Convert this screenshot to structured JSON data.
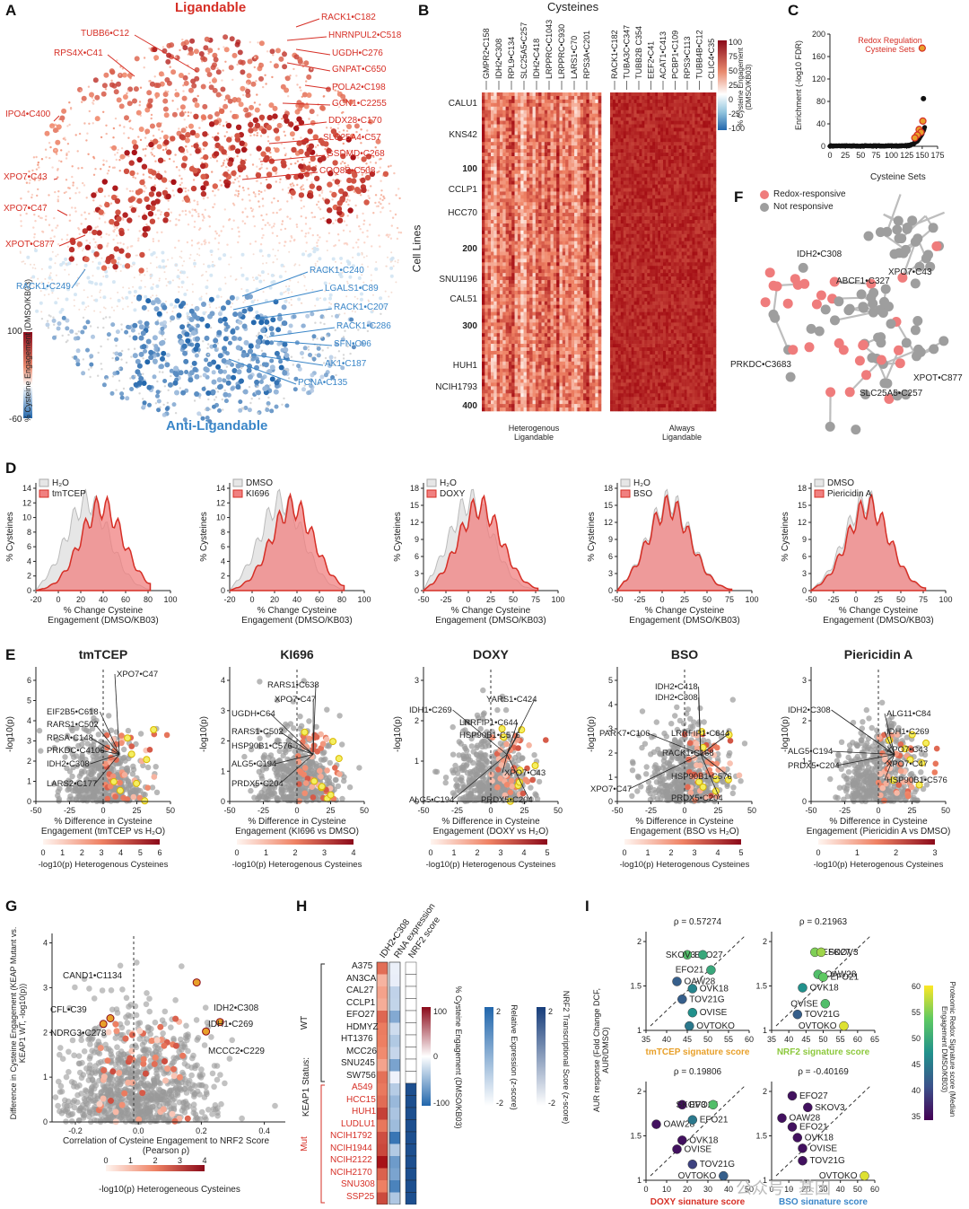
{
  "figure": {
    "labels": [
      "A",
      "B",
      "C",
      "D",
      "E",
      "F",
      "G",
      "H",
      "I"
    ]
  },
  "panelA": {
    "top_title": "Ligandable",
    "bottom_title": "Anti-Ligandable",
    "legend_top": "100",
    "legend_bottom": "-60",
    "legend_label": "% Cysteine Engagement (DMSO/KB03)",
    "red_labels": [
      "RACK1•C182",
      "HNRNPUL2•C518",
      "UGDH•C276",
      "GNPAT•C650",
      "POLA2•C198",
      "GCN1•C2255",
      "DDX28•C170",
      "SLC25A4•C57",
      "GSDMD•C268",
      "COQ8B•C508",
      "TUBB6•C12",
      "RPS4X•C41",
      "IPO4•C400",
      "XPO7•C43",
      "XPO7•C47",
      "XPOT•C877"
    ],
    "blue_labels": [
      "RACK1•C240",
      "LGALS1•C89",
      "RACK1•C207",
      "RACK1•C286",
      "SFN•C96",
      "AK1•C187",
      "PCNA•C135",
      "RACK1•C249"
    ]
  },
  "panelB": {
    "title": "Cysteines",
    "col_labels_left": [
      "GMPR2•C158",
      "IDH2•C308",
      "RPL9•C134",
      "SLC25A5•C257",
      "IDH2•C418",
      "LRPPRC•C1043",
      "LRPPRC•C930",
      "LARS1•C70",
      "RPS3A•C201"
    ],
    "col_labels_right": [
      "RACK1•C182",
      "TUBA3C•C347",
      "TUBB2B C354",
      "EEF2•C41",
      "ACAT1•C413",
      "PCBP1•C109",
      "RPS3•C113",
      "TUBB4B•C12",
      "CLIC4•C35"
    ],
    "row_labels": [
      "CALU1",
      "KNS42",
      "100",
      "CCLP1",
      "HCC70",
      "200",
      "SNU1196",
      "CAL51",
      "300",
      "HUH1",
      "NCIH1793",
      "400"
    ],
    "y_title": "Cell Lines",
    "left_caption": "Heterogenous Ligandable",
    "right_caption": "Always Ligandable",
    "legend_top": "100",
    "legend_mid1": "75",
    "legend_mid2": "50",
    "legend_mid3": "25",
    "legend_mid4": "0",
    "legend_mid5": "-25",
    "legend_bottom": "-100",
    "legend_label": "% Cysteine Engagement (DMSO/KB03)"
  },
  "panelC": {
    "annotation": "Redox Regulation Cysteine Sets",
    "xlabel": "Cysteine Sets",
    "ylabel": "Enrichment (-log10 FDR)",
    "xticks": [
      "0",
      "25",
      "50",
      "75",
      "100",
      "125",
      "150",
      "175"
    ],
    "yticks": [
      "0",
      "20",
      "40",
      "60",
      "80",
      "100",
      "120",
      "140",
      "160",
      "180",
      "200"
    ]
  },
  "panelF": {
    "legend_red": "Redox-responsive",
    "legend_gray": "Not responsive",
    "labels": [
      "IDH2•C308",
      "ABCF1•C327",
      "XPO7•C43",
      "PRKDC•C3683",
      "XPOT•C877",
      "SLC25A5•C257"
    ]
  },
  "panelD": {
    "xlabel": "% Change Cysteine Engagement (DMSO/KB03)",
    "ylabel": "% Cysteines",
    "plots": [
      {
        "ctrl": "H₂O",
        "trt": "tmTCEP",
        "xticks": [
          "-20",
          "0",
          "20",
          "40",
          "60",
          "80",
          "100"
        ],
        "yticks": [
          "0",
          "2",
          "4",
          "6",
          "8",
          "10",
          "12",
          "14"
        ]
      },
      {
        "ctrl": "DMSO",
        "trt": "KI696",
        "xticks": [
          "-20",
          "0",
          "20",
          "40",
          "60",
          "80",
          "100"
        ],
        "yticks": [
          "0",
          "2",
          "4",
          "6",
          "8",
          "10",
          "12",
          "14"
        ]
      },
      {
        "ctrl": "H₂O",
        "trt": "DOXY",
        "xticks": [
          "-50",
          "-25",
          "0",
          "25",
          "50",
          "75",
          "100"
        ],
        "yticks": [
          "0",
          "3",
          "6",
          "9",
          "12",
          "15",
          "18"
        ]
      },
      {
        "ctrl": "H₂O",
        "trt": "BSO",
        "xticks": [
          "-50",
          "-25",
          "0",
          "25",
          "50",
          "75",
          "100"
        ],
        "yticks": [
          "0",
          "3",
          "6",
          "9",
          "12",
          "15",
          "18"
        ]
      },
      {
        "ctrl": "DMSO",
        "trt": "Piericidin A",
        "xticks": [
          "-50",
          "-25",
          "0",
          "25",
          "50",
          "75",
          "100"
        ],
        "yticks": [
          "0",
          "3",
          "6",
          "9",
          "12",
          "15",
          "18"
        ]
      }
    ]
  },
  "panelE": {
    "ylabel": "-log10(p)",
    "legend_label": "-log10(p) Heterogenous Cysteines",
    "plots": [
      {
        "title": "tmTCEP",
        "xlabel": "% Difference in Cysteine Engagement (tmTCEP vs H₂O)",
        "labels": [
          "XPO7•C47",
          "EIF2B5•C618",
          "RARS1•C502",
          "RPSA•C148",
          "PRKDC•C4106",
          "IDH2•C308",
          "LARS2•C177"
        ],
        "xticks": [
          "-50",
          "-25",
          "0",
          "25",
          "50"
        ],
        "yticks": [
          "0",
          "1",
          "2",
          "3",
          "4",
          "5",
          "6"
        ],
        "legend": [
          "0",
          "1",
          "2",
          "3",
          "4",
          "5",
          "6"
        ]
      },
      {
        "title": "KI696",
        "xlabel": "% Difference in Cysteine Engagement (KI696 vs DMSO)",
        "labels": [
          "RARS1•C638",
          "XPO7•C47",
          "UGDH•C64",
          "RARS1•C502",
          "HSP90B1•C576",
          "ALG5•C194",
          "PRDX5•C204"
        ],
        "xticks": [
          "-50",
          "-25",
          "0",
          "25",
          "50"
        ],
        "yticks": [
          "0",
          "1",
          "2",
          "3",
          "4"
        ],
        "legend": [
          "0",
          "1",
          "2",
          "3",
          "4"
        ]
      },
      {
        "title": "DOXY",
        "xlabel": "% Difference in Cysteine Engagement (DOXY vs H₂O)",
        "labels": [
          "YARS1•C424",
          "IDH1•C269",
          "LRRFIP1•C644",
          "HSP90B1•C576",
          "XPO7•C43",
          "ALG5•C194",
          "PRDX5•C204"
        ],
        "xticks": [
          "-50",
          "-25",
          "0",
          "25",
          "50"
        ],
        "yticks": [
          "0",
          "1",
          "2",
          "3"
        ],
        "legend": [
          "0",
          "1",
          "2",
          "3",
          "4",
          "5"
        ]
      },
      {
        "title": "BSO",
        "xlabel": "% Difference in Cysteine Engagement (BSO vs H₂O)",
        "labels": [
          "IDH2•C418",
          "IDH2•C308",
          "PARK7•C106",
          "LRRFIP1•C644",
          "RACK1•C168",
          "HSP90B1•C576",
          "XPO7•C47",
          "PRDX5•C204"
        ],
        "xticks": [
          "-50",
          "-25",
          "0",
          "25",
          "50"
        ],
        "yticks": [
          "0",
          "1",
          "2",
          "3",
          "4",
          "5"
        ],
        "legend": [
          "0",
          "1",
          "2",
          "3",
          "4",
          "5"
        ]
      },
      {
        "title": "Piericidin A",
        "xlabel": "% Difference in Cysteine Engagement (Piericidin A vs DMSO)",
        "labels": [
          "IDH2•C308",
          "ALG11•C84",
          "IDH1•C269",
          "ALG5•C194",
          "XPO7•C43",
          "PRDX5•C204",
          "XPO7•C47",
          "HSP90B1•C576"
        ],
        "xticks": [
          "-50",
          "-25",
          "0",
          "25",
          "50"
        ],
        "yticks": [
          "0",
          "1",
          "2",
          "3"
        ],
        "legend": [
          "0",
          "1",
          "2",
          "3"
        ]
      }
    ]
  },
  "panelG": {
    "xlabel": "Correlation of Cysteine Engagement to NRF2 Score (Pearson ρ)",
    "ylabel": "Difference in Cysteine Engagement (KEAP Mutant vs. KEAP1 WT, -log10(p))",
    "labels": [
      "CAND1•C1134",
      "CFL•C39",
      "NDRG3•C278",
      "IDH2•C308",
      "IDH1•C269",
      "MCCC2•C229"
    ],
    "xticks": [
      "-0.2",
      "0.0",
      "0.2",
      "0.4"
    ],
    "yticks": [
      "0",
      "1",
      "2",
      "3",
      "4"
    ],
    "legend": [
      "0",
      "1",
      "2",
      "3",
      "4"
    ],
    "legend_label": "-log10(p) Heterogeneous Cysteines"
  },
  "panelH": {
    "col_labels": [
      "IDH2•C308",
      "RNA expression",
      "NRF2 score"
    ],
    "wt_lines": [
      "A375",
      "AN3CA",
      "CAL27",
      "CCLP1",
      "EFO27",
      "HDMYZ",
      "HT1376",
      "MCC26",
      "SNU245",
      "SW756"
    ],
    "mut_lines": [
      "A549",
      "HCC15",
      "HUH1",
      "LUDLU1",
      "NCIH1792",
      "NCIH1944",
      "NCIH2122",
      "NCIH2170",
      "SNU308",
      "SSP25"
    ],
    "status_title": "KEAP1 Status:",
    "wt_label": "WT",
    "mut_label": "Mut",
    "legend1": {
      "top": "100",
      "mid": "0",
      "bottom": "-100",
      "label": "% Cysteine Engagement (DMSO/KB03)"
    },
    "legend2": {
      "top": "2",
      "bottom": "-2",
      "label": "Relative Expression (z-score)"
    },
    "legend3": {
      "top": "2",
      "bottom": "-2",
      "label": "NRF2 Transcriptional Score (z-score)"
    }
  },
  "panelI": {
    "ylabel": "AUR response (Fold Change DCF, AUR/DMSO)",
    "colorbar_label": "Proteomic Redox Signature score (Median Engagement DMSO/KB03)",
    "colorbar_ticks": [
      "60",
      "55",
      "50",
      "45",
      "40",
      "35"
    ],
    "plots": [
      {
        "rho": "ρ = 0.57274",
        "xlabel": "tmTCEP signature score",
        "color": "#e8a02a",
        "xticks": [
          "35",
          "40",
          "45",
          "50",
          "55",
          "60"
        ],
        "labels": [
          "EFO27",
          "SKOV3",
          "EFO21",
          "OAW28",
          "OVK18",
          "TOV21G",
          "OVISE",
          "OVTOKO"
        ]
      },
      {
        "rho": "ρ = 0.21963",
        "xlabel": "NRF2 signature score",
        "color": "#8cc83c",
        "xticks": [
          "35",
          "40",
          "45",
          "50",
          "55",
          "60",
          "65"
        ],
        "labels": [
          "EFO27",
          "SKOV3",
          "OAW28",
          "EFO21",
          "OVK18",
          "OVISE",
          "TOV21G",
          "OVTOKO"
        ]
      },
      {
        "rho": "ρ = 0.19806",
        "xlabel": "DOXY signature score",
        "color": "#d62f26",
        "xticks": [
          "0",
          "10",
          "20",
          "30",
          "40",
          "50"
        ],
        "labels": [
          "EFO27",
          "SKOV3",
          "OAW28",
          "EFO21",
          "OVK18",
          "OVISE",
          "TOV21G",
          "OVTOKO"
        ]
      },
      {
        "rho": "ρ = -0.40169",
        "xlabel": "BSO signature score",
        "color": "#3a86c8",
        "xticks": [
          "0",
          "10",
          "20",
          "30",
          "40",
          "50",
          "60"
        ],
        "labels": [
          "EFO27",
          "SKOV3",
          "OAW28",
          "EFO21",
          "OVK18",
          "OVISE",
          "TOV21G",
          "OVTOKO"
        ]
      }
    ],
    "yticks": [
      "1",
      "1.5",
      "2"
    ],
    "watermark": "公众号 · 基因"
  }
}
